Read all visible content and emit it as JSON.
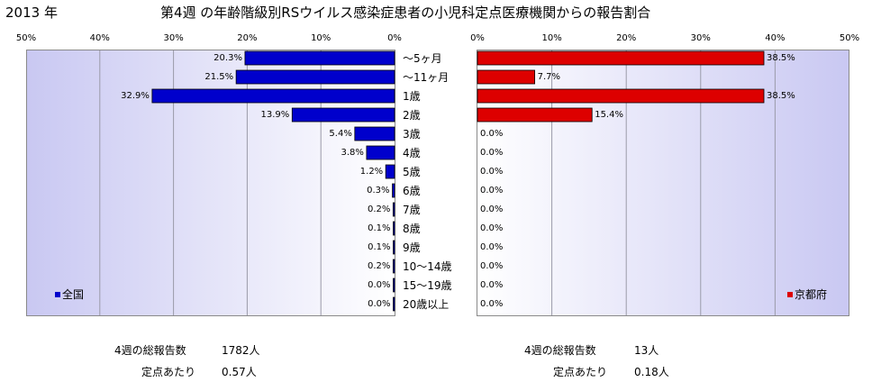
{
  "header": {
    "year": "2013 年",
    "title": "第4週 の年齢階級別RSウイルス感染症患者の小児科定点医療機関からの報告割合"
  },
  "colors": {
    "national": "#0000cc",
    "kyoto": "#dd0000",
    "grid": "#9a9aa8"
  },
  "chart_data": {
    "type": "bar",
    "orientation": "horizontal",
    "grid": true,
    "categories": [
      "～5ヶ月",
      "～11ヶ月",
      "1歳",
      "2歳",
      "3歳",
      "4歳",
      "5歳",
      "6歳",
      "7歳",
      "8歳",
      "9歳",
      "10～14歳",
      "15～19歳",
      "20歳以上"
    ],
    "xlim": [
      0,
      50
    ],
    "ticks": [
      "50%",
      "40%",
      "30%",
      "20%",
      "10%",
      "0%"
    ],
    "ticks_right": [
      "0%",
      "10%",
      "20%",
      "30%",
      "40%",
      "50%"
    ],
    "series": [
      {
        "name": "全国",
        "legend_position": "bottom-left",
        "values": [
          20.3,
          21.5,
          32.9,
          13.9,
          5.4,
          3.8,
          1.2,
          0.3,
          0.2,
          0.1,
          0.1,
          0.2,
          0.0,
          0.0
        ],
        "labels": [
          "20.3%",
          "21.5%",
          "32.9%",
          "13.9%",
          "5.4%",
          "3.8%",
          "1.2%",
          "0.3%",
          "0.2%",
          "0.1%",
          "0.1%",
          "0.2%",
          "0.0%",
          "0.0%"
        ]
      },
      {
        "name": "京都府",
        "legend_position": "bottom-right",
        "values": [
          38.5,
          7.7,
          38.5,
          15.4,
          0,
          0,
          0,
          0,
          0,
          0,
          0,
          0,
          0,
          0
        ],
        "labels": [
          "38.5%",
          "7.7%",
          "38.5%",
          "15.4%",
          "0.0%",
          "0.0%",
          "0.0%",
          "0.0%",
          "0.0%",
          "0.0%",
          "0.0%",
          "0.0%",
          "0.0%",
          "0.0%"
        ]
      }
    ]
  },
  "summary": {
    "national": {
      "total_label": "4週の総報告数",
      "total_value": "1782人",
      "per_label": "定点あたり",
      "per_value": "0.57人"
    },
    "kyoto": {
      "total_label": "4週の総報告数",
      "total_value": "13人",
      "per_label": "定点あたり",
      "per_value": "0.18人"
    }
  }
}
